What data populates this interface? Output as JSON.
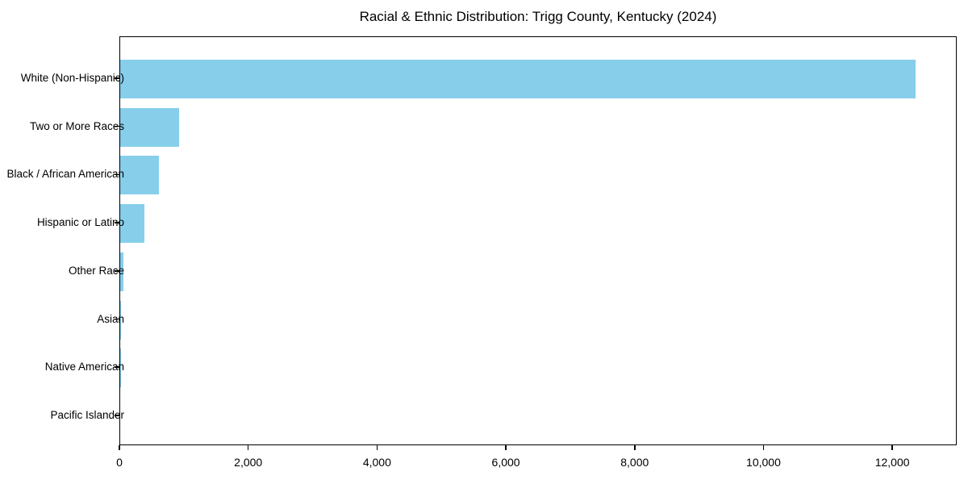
{
  "title": "Racial & Ethnic Distribution: Trigg County, Kentucky (2024)",
  "chart_data": {
    "type": "bar",
    "orientation": "horizontal",
    "title": "Racial & Ethnic Distribution: Trigg County, Kentucky (2024)",
    "categories": [
      "White (Non-Hispanic)",
      "Two or More Races",
      "Black / African American",
      "Hispanic or Latino",
      "Other Race",
      "Asian",
      "Native American",
      "Pacific Islander"
    ],
    "values": [
      12350,
      920,
      600,
      380,
      50,
      15,
      5,
      0
    ],
    "xlabel": "",
    "ylabel": "",
    "xlim": [
      0,
      13000
    ],
    "xticks": [
      0,
      2000,
      4000,
      6000,
      8000,
      10000,
      12000
    ],
    "xtick_labels": [
      "0",
      "2,000",
      "4,000",
      "6,000",
      "8,000",
      "10,000",
      "12,000"
    ],
    "bar_color": "#87CEEB",
    "axis_color": "#000000",
    "text_color": "#000000",
    "background_color": "#FFFFFF",
    "grid": false,
    "legend_position": "none"
  }
}
